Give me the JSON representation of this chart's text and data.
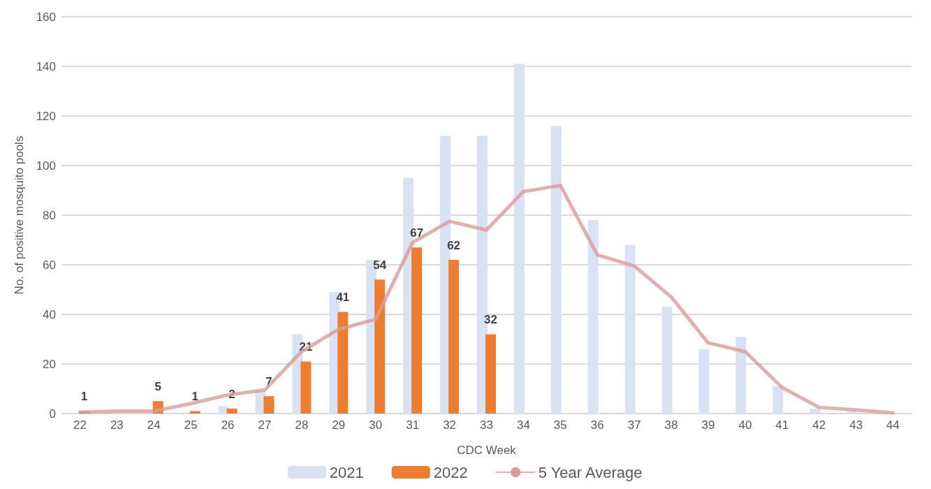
{
  "chart_data": {
    "type": "bar",
    "xlabel": "CDC Week",
    "ylabel": "No. of positive mosquito pools",
    "categories": [
      "22",
      "23",
      "24",
      "25",
      "26",
      "27",
      "28",
      "29",
      "30",
      "31",
      "32",
      "33",
      "34",
      "35",
      "36",
      "37",
      "38",
      "39",
      "40",
      "41",
      "42",
      "43",
      "44"
    ],
    "series": [
      {
        "name": "2021",
        "color": "#d9e2f3",
        "values": [
          0,
          null,
          null,
          null,
          3,
          9,
          32,
          49,
          62,
          95,
          112,
          112,
          141,
          116,
          78,
          68,
          43,
          26,
          31,
          11,
          2,
          1,
          0
        ]
      },
      {
        "name": "2022",
        "color": "#ed7d31",
        "values": [
          1,
          null,
          5,
          1,
          2,
          7,
          21,
          41,
          54,
          67,
          62,
          32,
          null,
          null,
          null,
          null,
          null,
          null,
          null,
          null,
          null,
          null,
          null
        ],
        "value_labels": [
          "1",
          null,
          "5",
          "1",
          "2",
          "7",
          "21",
          "41",
          "54",
          "67",
          "62",
          "32",
          null,
          null,
          null,
          null,
          null,
          null,
          null,
          null,
          null,
          null,
          null
        ]
      },
      {
        "name": "5 Year Average",
        "type": "line",
        "color": "#dc9a9a",
        "values": [
          0.5,
          1,
          1,
          4,
          7.5,
          9.5,
          25,
          34,
          38,
          69,
          77.5,
          74,
          89.5,
          92,
          64,
          59.5,
          47,
          28.5,
          25,
          10.5,
          2.5,
          1.5,
          0.3
        ]
      }
    ],
    "ylim": [
      0,
      160
    ],
    "yticks": [
      0,
      20,
      40,
      60,
      80,
      100,
      120,
      140,
      160
    ],
    "grid": "y",
    "legend": "bottom",
    "marker": "none"
  }
}
